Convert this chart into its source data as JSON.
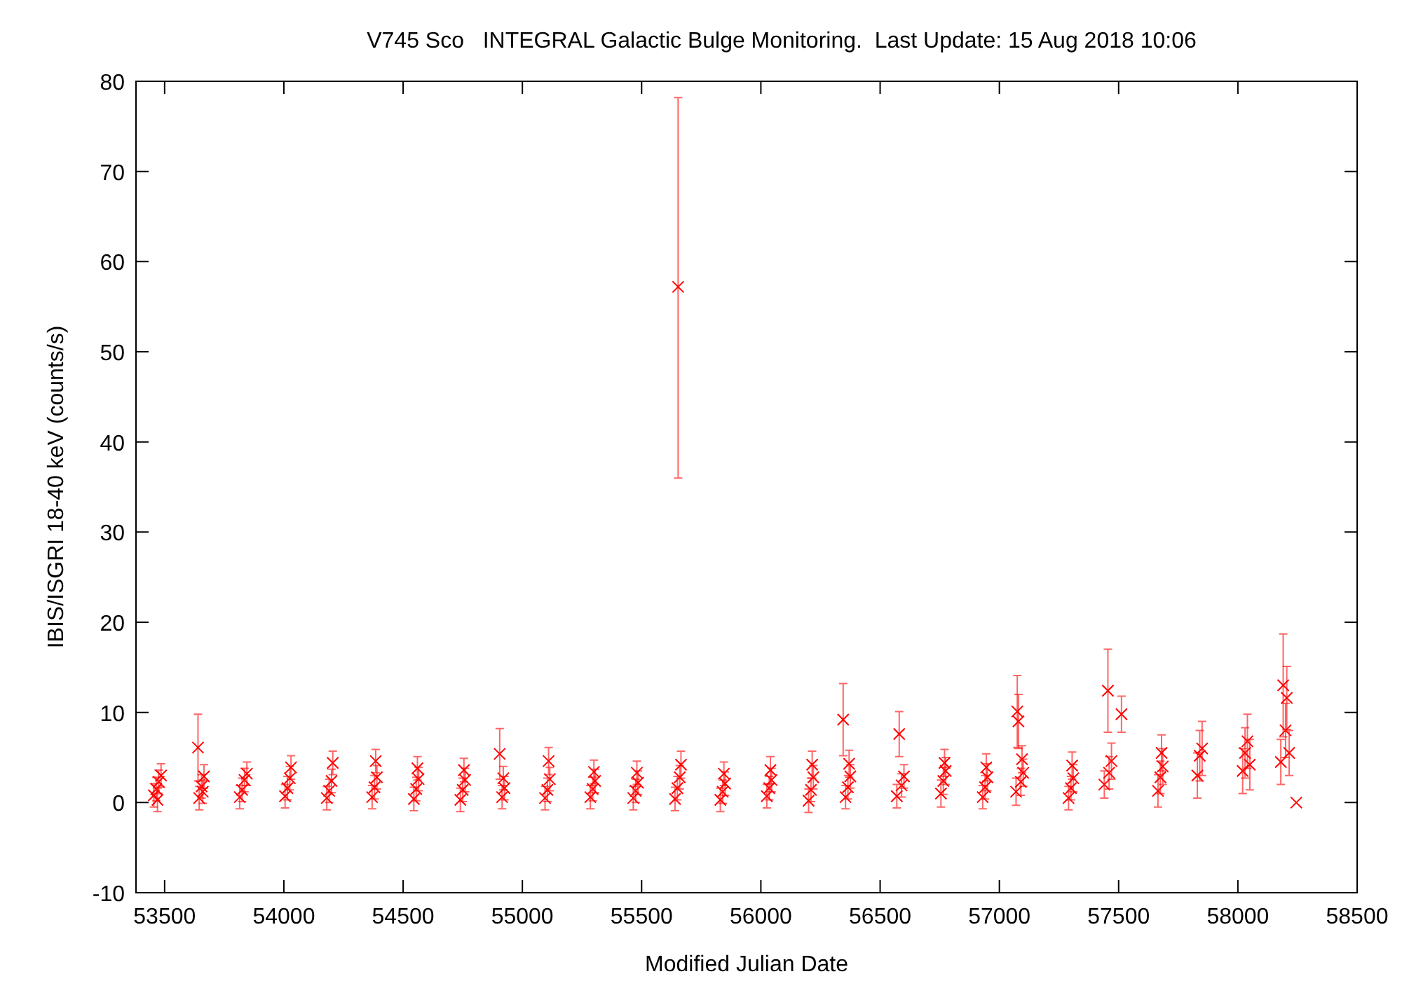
{
  "chart_data": {
    "type": "scatter",
    "title": "V745 Sco   INTEGRAL Galactic Bulge Monitoring.  Last Update: 15 Aug 2018 10:06",
    "xlabel": "Modified Julian Date",
    "ylabel": "IBIS/ISGRI 18-40 keV (counts/s)",
    "xlim": [
      53380,
      58500
    ],
    "xticks": [
      53500,
      54000,
      54500,
      55000,
      55500,
      56000,
      56500,
      57000,
      57500,
      58000,
      58500
    ],
    "ylim": [
      -10,
      80
    ],
    "yticks": [
      -10,
      0,
      10,
      20,
      30,
      40,
      50,
      60,
      70,
      80
    ],
    "grid": false,
    "marker": "cross",
    "series": [
      {
        "color": "#ff0000",
        "x": [
          53455,
          53465,
          53475,
          53485,
          53470,
          53640,
          53645,
          53655,
          53665,
          53660,
          53815,
          53825,
          53835,
          53845,
          54005,
          54015,
          54025,
          54030,
          54180,
          54190,
          54200,
          54205,
          54370,
          54380,
          54390,
          54385,
          54545,
          54555,
          54565,
          54560,
          54740,
          54750,
          54760,
          54755,
          54905,
          54915,
          54925,
          54920,
          55095,
          55105,
          55115,
          55110,
          55285,
          55295,
          55305,
          55300,
          55465,
          55475,
          55485,
          55480,
          55653,
          55640,
          55650,
          55660,
          55665,
          55830,
          55840,
          55850,
          55845,
          56025,
          56035,
          56045,
          56040,
          56200,
          56210,
          56220,
          56215,
          56345,
          56355,
          56365,
          56375,
          56370,
          56580,
          56570,
          56590,
          56600,
          56755,
          56765,
          56775,
          56770,
          56930,
          56940,
          56950,
          56945,
          57075,
          57080,
          57070,
          57090,
          57100,
          57095,
          57290,
          57300,
          57310,
          57305,
          57455,
          57440,
          57460,
          57470,
          57512,
          57665,
          57675,
          57685,
          57680,
          57830,
          57840,
          57850,
          58020,
          58030,
          58040,
          58050,
          58190,
          58205,
          58180,
          58200,
          58215,
          58245
        ],
        "values": [
          0.8,
          1.5,
          2.3,
          3.0,
          0.3,
          6.1,
          0.5,
          1.8,
          2.9,
          1.2,
          0.6,
          1.4,
          2.5,
          3.2,
          0.7,
          1.6,
          2.7,
          3.9,
          0.5,
          1.3,
          2.4,
          4.4,
          0.6,
          1.7,
          2.8,
          4.6,
          0.4,
          1.5,
          2.6,
          3.8,
          0.3,
          1.4,
          2.5,
          3.6,
          5.4,
          0.6,
          1.6,
          2.7,
          0.5,
          1.4,
          2.6,
          4.6,
          0.6,
          1.5,
          2.4,
          3.4,
          0.5,
          1.3,
          2.2,
          3.3,
          57.2,
          0.4,
          1.6,
          2.8,
          4.2,
          0.3,
          1.2,
          2.1,
          3.2,
          0.7,
          1.6,
          2.5,
          3.6,
          0.2,
          1.4,
          2.8,
          4.2,
          9.2,
          0.6,
          1.7,
          2.9,
          4.3,
          7.6,
          0.7,
          1.9,
          2.9,
          1.0,
          2.4,
          3.5,
          4.4,
          0.6,
          1.7,
          2.8,
          3.9,
          10.1,
          9.0,
          1.2,
          2.3,
          3.3,
          4.8,
          0.5,
          1.6,
          2.7,
          4.1,
          12.4,
          2.0,
          3.3,
          4.6,
          9.8,
          1.3,
          2.8,
          4.0,
          5.5,
          3.0,
          5.2,
          6.0,
          3.5,
          5.5,
          6.8,
          4.2,
          13.0,
          11.6,
          4.5,
          8.0,
          5.5,
          0.0
        ],
        "errors": [
          1.3,
          1.3,
          1.3,
          1.3,
          1.3,
          3.7,
          1.3,
          1.3,
          1.3,
          1.3,
          1.3,
          1.3,
          1.3,
          1.3,
          1.3,
          1.3,
          1.3,
          1.3,
          1.3,
          1.3,
          1.3,
          1.3,
          1.3,
          1.3,
          1.3,
          1.3,
          1.3,
          1.3,
          1.3,
          1.3,
          1.3,
          1.3,
          1.3,
          1.3,
          2.8,
          1.3,
          1.3,
          1.3,
          1.3,
          1.3,
          1.3,
          1.5,
          1.3,
          1.3,
          1.3,
          1.3,
          1.3,
          1.3,
          1.3,
          1.3,
          [
            36.0,
            78.2
          ],
          1.3,
          1.3,
          1.3,
          1.5,
          1.3,
          1.3,
          1.3,
          1.3,
          1.3,
          1.3,
          1.3,
          1.5,
          1.3,
          1.3,
          1.3,
          1.5,
          [
            5.2,
            13.2
          ],
          1.3,
          1.3,
          1.3,
          1.5,
          2.5,
          1.3,
          1.3,
          1.3,
          1.5,
          1.5,
          1.5,
          1.5,
          1.3,
          1.3,
          1.5,
          1.5,
          4.0,
          3.0,
          1.5,
          1.5,
          1.5,
          1.5,
          1.3,
          1.3,
          1.5,
          1.5,
          4.6,
          1.5,
          1.8,
          2.0,
          2.0,
          1.8,
          1.8,
          2.0,
          2.0,
          2.5,
          2.8,
          3.0,
          2.5,
          2.8,
          3.0,
          2.8,
          5.7,
          3.5,
          2.5,
          3.0,
          2.5,
          0
        ]
      }
    ]
  }
}
